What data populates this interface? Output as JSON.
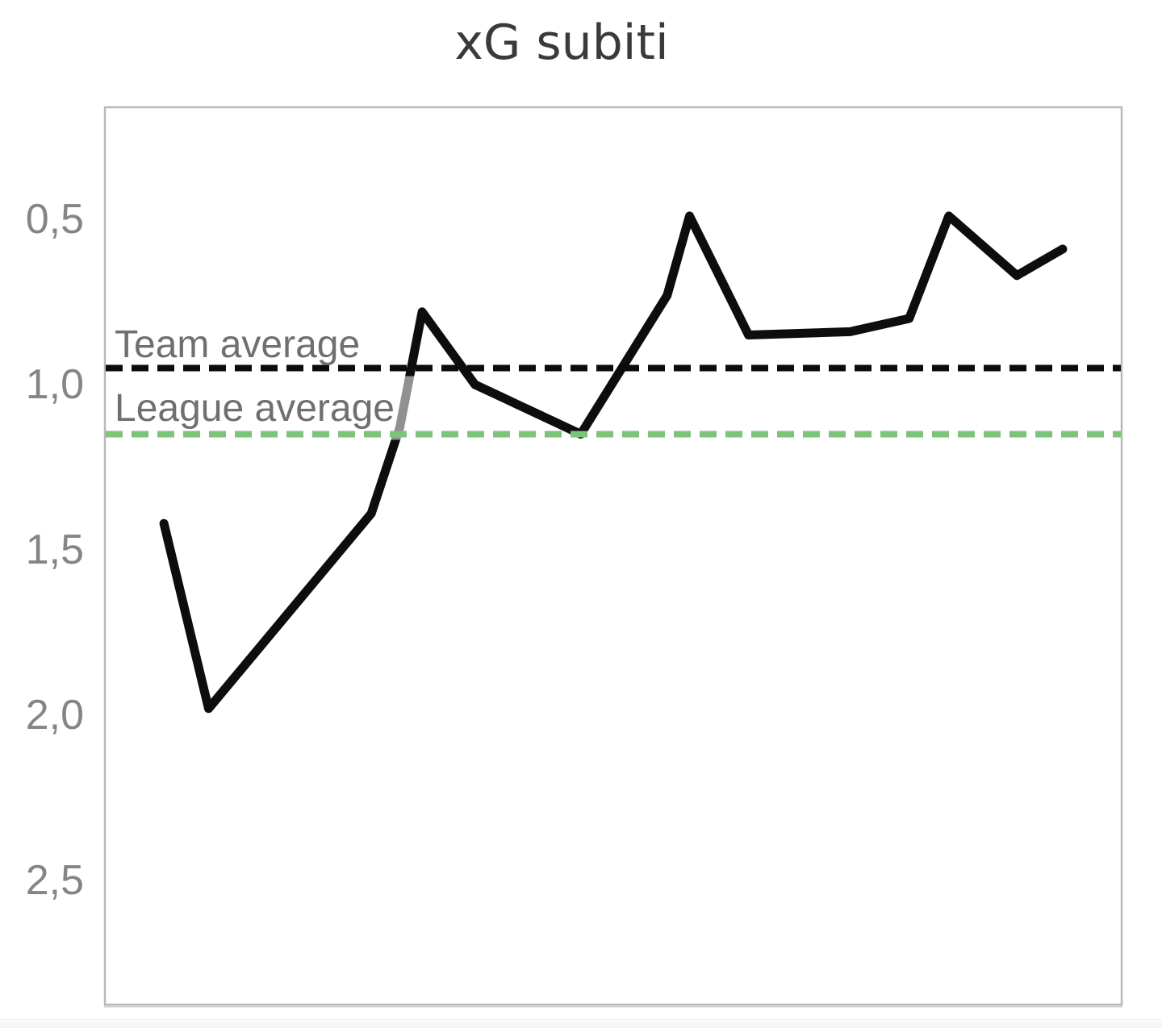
{
  "chart_data": {
    "type": "line",
    "title": "xG subiti",
    "grid": "off",
    "legend": "none",
    "y_axis": {
      "inverted": true,
      "top_value": 0.16,
      "bottom_value": 2.88,
      "ticks": [
        {
          "label": "0,5",
          "value": 0.5
        },
        {
          "label": "1,0",
          "value": 1.0
        },
        {
          "label": "1,5",
          "value": 1.5
        },
        {
          "label": "2,0",
          "value": 2.0
        },
        {
          "label": "2,5",
          "value": 2.5
        }
      ]
    },
    "x_axis": {
      "tick_labels": [],
      "note": "no visible x-axis labels; x_frac is relative position along the axis"
    },
    "series": [
      {
        "name": "xG subiti",
        "color": "#0d0d0d",
        "points": [
          {
            "x_frac": 0.058,
            "value": 1.42
          },
          {
            "x_frac": 0.102,
            "value": 1.98
          },
          {
            "x_frac": 0.262,
            "value": 1.39
          },
          {
            "x_frac": 0.29,
            "value": 1.13
          },
          {
            "x_frac": 0.312,
            "value": 0.78
          },
          {
            "x_frac": 0.364,
            "value": 1.0
          },
          {
            "x_frac": 0.468,
            "value": 1.15
          },
          {
            "x_frac": 0.553,
            "value": 0.73
          },
          {
            "x_frac": 0.575,
            "value": 0.49
          },
          {
            "x_frac": 0.633,
            "value": 0.85
          },
          {
            "x_frac": 0.733,
            "value": 0.84
          },
          {
            "x_frac": 0.791,
            "value": 0.8
          },
          {
            "x_frac": 0.83,
            "value": 0.49
          },
          {
            "x_frac": 0.897,
            "value": 0.67
          },
          {
            "x_frac": 0.942,
            "value": 0.59
          }
        ]
      }
    ],
    "reference_lines": [
      {
        "label": "Team average",
        "value": 0.95,
        "color": "#0b0b0b",
        "style": "dashed"
      },
      {
        "label": "League average",
        "value": 1.15,
        "color": "#7cc47a",
        "style": "dashed"
      }
    ]
  },
  "colors": {
    "background": "#ffffff",
    "title": "#3a3a3a",
    "tick_label": "#858585",
    "ref_label": "#6f6f6f",
    "plot_border": "#b9b9b9",
    "series": "#0d0d0d",
    "team_average": "#0b0b0b",
    "league_average": "#7cc47a"
  }
}
